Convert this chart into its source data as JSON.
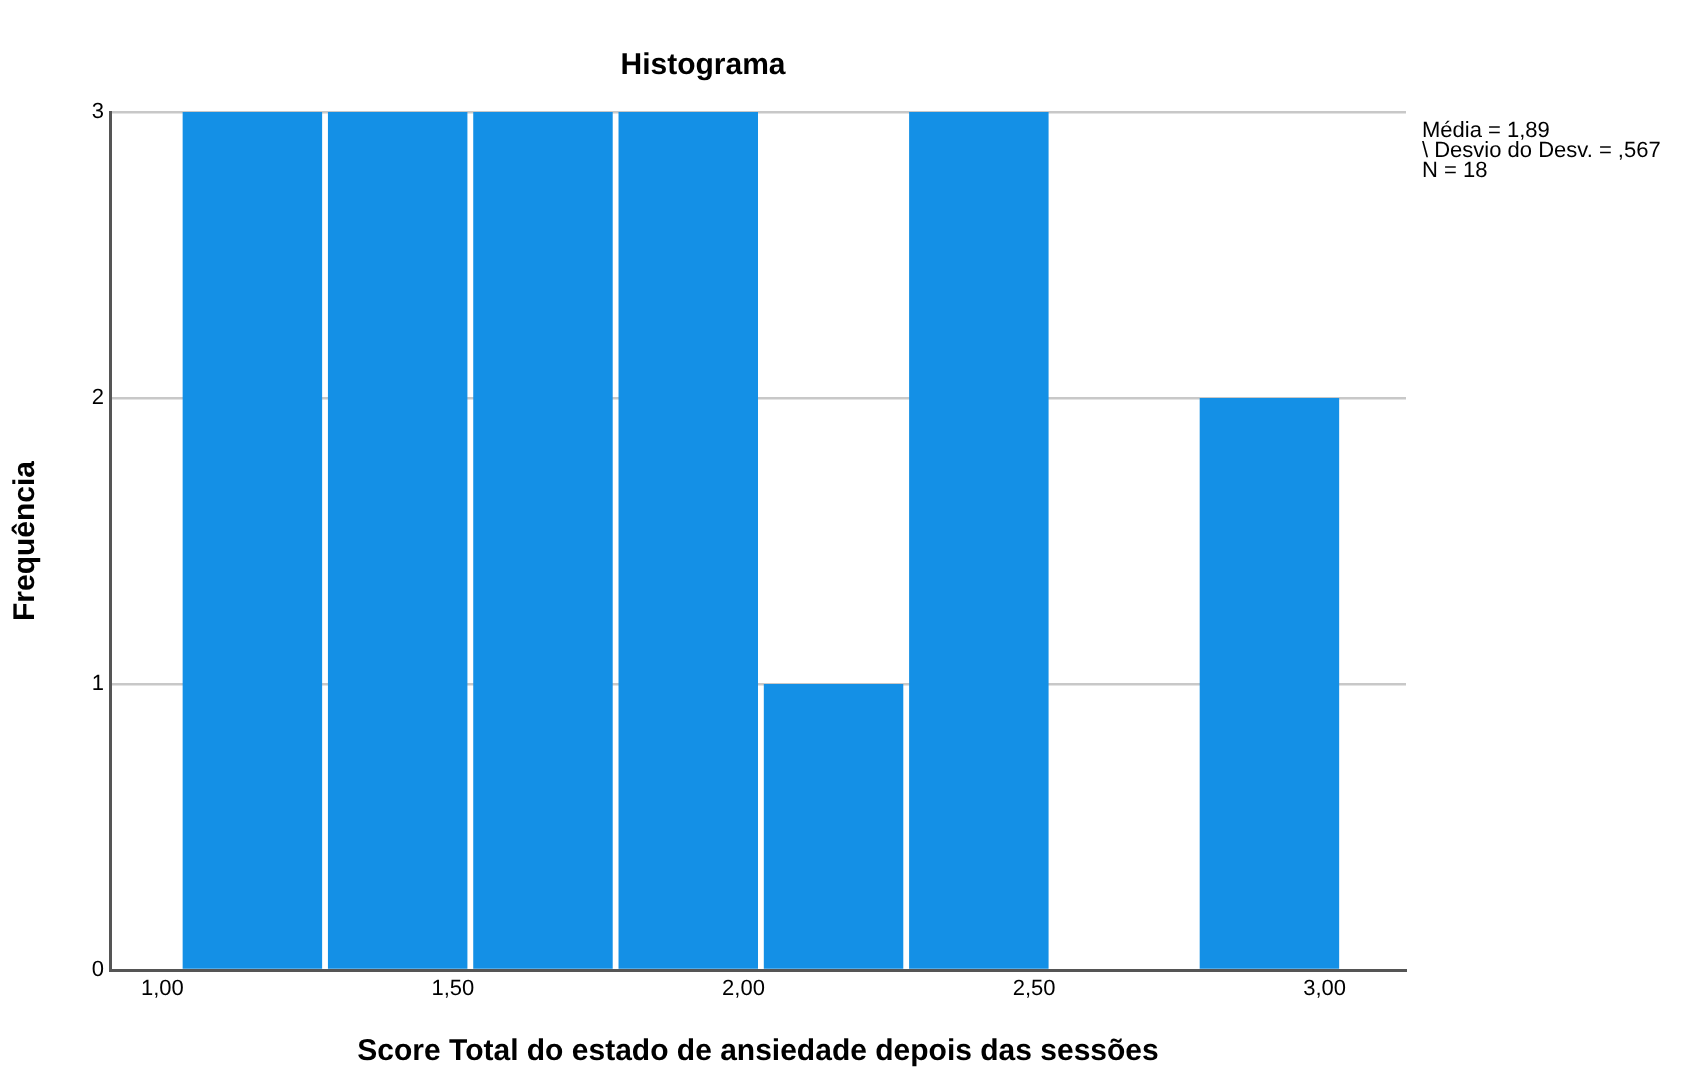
{
  "chart_data": {
    "type": "histogram",
    "title": "Histograma",
    "xlabel": "Score Total do estado de ansiedade depois das sessões",
    "ylabel": "Frequência",
    "bins": [
      1.03,
      1.28,
      1.53,
      1.78,
      2.03,
      2.28,
      2.53,
      2.78,
      3.03
    ],
    "values": [
      3,
      3,
      3,
      3,
      1,
      3,
      0,
      2
    ],
    "color": "#1490e6",
    "xlim": [
      0.91,
      3.14
    ],
    "xticks": [
      {
        "value": 1,
        "label": "1,00"
      },
      {
        "value": 1.5,
        "label": "1,50"
      },
      {
        "value": 2,
        "label": "2,00"
      },
      {
        "value": 2.5,
        "label": "2,50"
      },
      {
        "value": 3,
        "label": "3,00"
      }
    ],
    "ylim": [
      0,
      3
    ],
    "yticks": [
      0,
      1,
      2,
      3
    ],
    "grid": "y",
    "annotations": [
      "Média = 1,89",
      "\\ Desvio do Desv. = ,567",
      "N = 18"
    ]
  }
}
